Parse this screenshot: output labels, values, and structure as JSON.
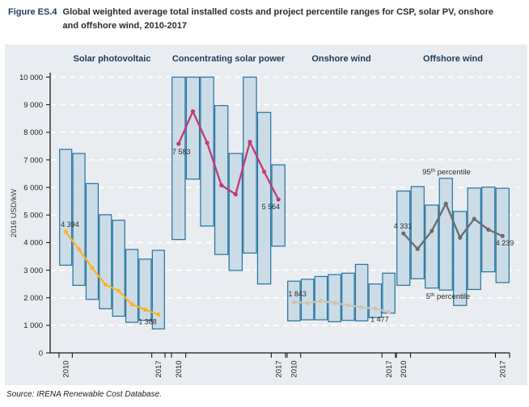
{
  "figure": {
    "label": "Figure ES.4",
    "title": "Global weighted average total installed costs and project percentile ranges for CSP, solar PV, onshore and offshore wind, 2010-2017",
    "source": "Source: IRENA Renewable Cost Database."
  },
  "chart_data": {
    "type": "bar",
    "subtype": "percentile-range-columns-with-average-line",
    "title": "Global weighted average total installed costs and project percentile ranges for CSP, solar PV, onshore and offshore wind, 2010-2017",
    "xlabel": "",
    "ylabel": "2016 USD/kW",
    "ylim": [
      0,
      10000
    ],
    "ytick_step": 1000,
    "ytick_labels": [
      "0",
      "1 000",
      "2 000",
      "3 000",
      "4 000",
      "5 000",
      "6 000",
      "7 000",
      "8 000",
      "9 000",
      "10 000"
    ],
    "grid": "white dashed horizontal lines",
    "years": [
      2010,
      2011,
      2012,
      2013,
      2014,
      2015,
      2016,
      2017
    ],
    "year_axis_labels": [
      "2010",
      "2017"
    ],
    "bar_fill": "#c9dae6",
    "bar_stroke": "#20729f",
    "groups": [
      {
        "name": "Solar photovoltaic",
        "line_color": "#f7b42c",
        "p95_bar_top": [
          7380,
          7230,
          6140,
          5010,
          4810,
          3750,
          3400,
          3720
        ],
        "p5_bar_bottom": [
          3180,
          2450,
          1940,
          1600,
          1330,
          1110,
          1180,
          870
        ],
        "weighted_avg_line": [
          4394,
          3760,
          3080,
          2480,
          2250,
          1760,
          1570,
          1388
        ],
        "first_point_label": "4 394",
        "last_point_label": "1 388"
      },
      {
        "name": "Concentrating solar power",
        "line_color": "#c13a76",
        "p95_bar_top": [
          10000,
          10000,
          10000,
          8970,
          7230,
          10000,
          8720,
          6820
        ],
        "p5_bar_bottom": [
          4110,
          6300,
          4600,
          3570,
          2990,
          3620,
          2500,
          3870
        ],
        "weighted_avg_line": [
          7583,
          8760,
          7620,
          6080,
          5750,
          7650,
          6570,
          5564
        ],
        "first_point_label": "7 583",
        "last_point_label": "5 564"
      },
      {
        "name": "Onshore wind",
        "line_color": "#cdc5b4",
        "p95_bar_top": [
          2600,
          2670,
          2770,
          2840,
          2890,
          3210,
          2500,
          2890
        ],
        "p5_bar_bottom": [
          1160,
          1200,
          1200,
          1130,
          1180,
          1160,
          1280,
          1440
        ],
        "weighted_avg_line": [
          1843,
          1810,
          1880,
          1810,
          1730,
          1650,
          1610,
          1477
        ],
        "first_point_label": "1 843",
        "last_point_label": "1 477"
      },
      {
        "name": "Offshore wind",
        "line_color": "#6b6c6e",
        "p95_bar_top": [
          5870,
          6030,
          5360,
          6330,
          5130,
          5980,
          6010,
          5970
        ],
        "p5_bar_bottom": [
          2450,
          2690,
          2350,
          2280,
          1720,
          2300,
          2940,
          2550
        ],
        "weighted_avg_line": [
          4331,
          3770,
          4420,
          5410,
          4180,
          4860,
          4470,
          4239
        ],
        "first_point_label": "4 331",
        "last_point_label": "4 239"
      }
    ],
    "annotations": [
      {
        "num": "95",
        "sup": "th",
        "rest": " percentile"
      },
      {
        "num": "5",
        "sup": "th",
        "rest": " percentile"
      }
    ],
    "legend_position": "none"
  }
}
